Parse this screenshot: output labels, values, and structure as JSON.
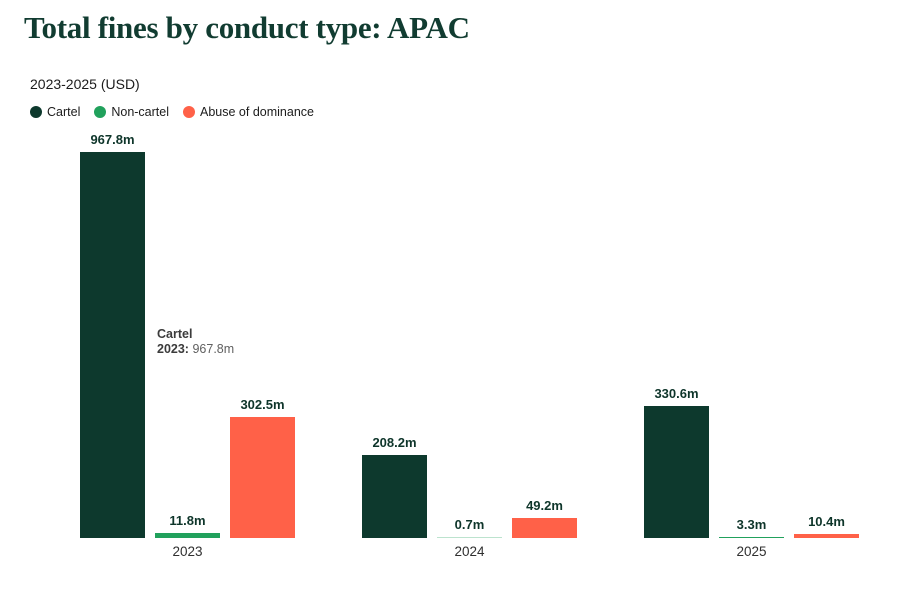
{
  "title": "Total fines by conduct type: APAC",
  "subtitle": "2023-2025 (USD)",
  "legend": [
    {
      "label": "Cartel",
      "color": "#0d392d"
    },
    {
      "label": "Non-cartel",
      "color": "#21a15c"
    },
    {
      "label": "Abuse of dominance",
      "color": "#ff6148"
    }
  ],
  "tooltip": {
    "series": "Cartel",
    "category": "2023:",
    "value": "967.8m"
  },
  "chart_data": {
    "type": "bar",
    "title": "Total fines by conduct type: APAC",
    "subtitle": "2023-2025 (USD)",
    "categories": [
      "2023",
      "2024",
      "2025"
    ],
    "series": [
      {
        "name": "Cartel",
        "color": "#0d392d",
        "values": [
          967.8,
          208.2,
          330.6
        ]
      },
      {
        "name": "Non-cartel",
        "color": "#21a15c",
        "values": [
          11.8,
          0.7,
          3.3
        ]
      },
      {
        "name": "Abuse of dominance",
        "color": "#ff6148",
        "values": [
          302.5,
          49.2,
          10.4
        ]
      }
    ],
    "unit_suffix": "m",
    "ylim": [
      0,
      967.8
    ],
    "grid": false,
    "legend_position": "top-left",
    "value_labels": true
  }
}
